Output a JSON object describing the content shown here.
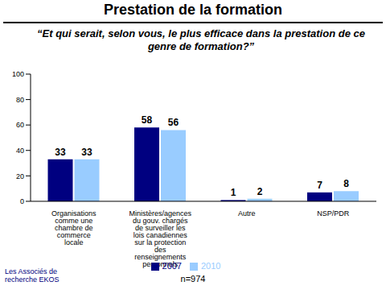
{
  "chart_data": {
    "type": "bar",
    "title": "Prestation de la formation",
    "subtitle": "“Et qui serait, selon vous, le plus efficace dans la prestation de ce genre de formation?”",
    "categories": [
      "Organisations comme une chambre de commerce locale",
      "Ministères/agences du gouv. chargés de surveiller les lois canadiennes sur la protection des renseignements personnels",
      "Autre",
      "NSP/PDR"
    ],
    "series": [
      {
        "name": "2007",
        "color": "#000080",
        "values": [
          33,
          58,
          1,
          7
        ]
      },
      {
        "name": "2010",
        "color": "#99ccff",
        "values": [
          33,
          56,
          2,
          8
        ]
      }
    ],
    "ylim": [
      0,
      100
    ],
    "yticks": [
      0,
      20,
      40,
      60,
      80,
      100
    ],
    "data_labels": true,
    "legend": "bottom",
    "annotations": [
      "n=974",
      "Les Associés de recherche EKOS"
    ]
  }
}
